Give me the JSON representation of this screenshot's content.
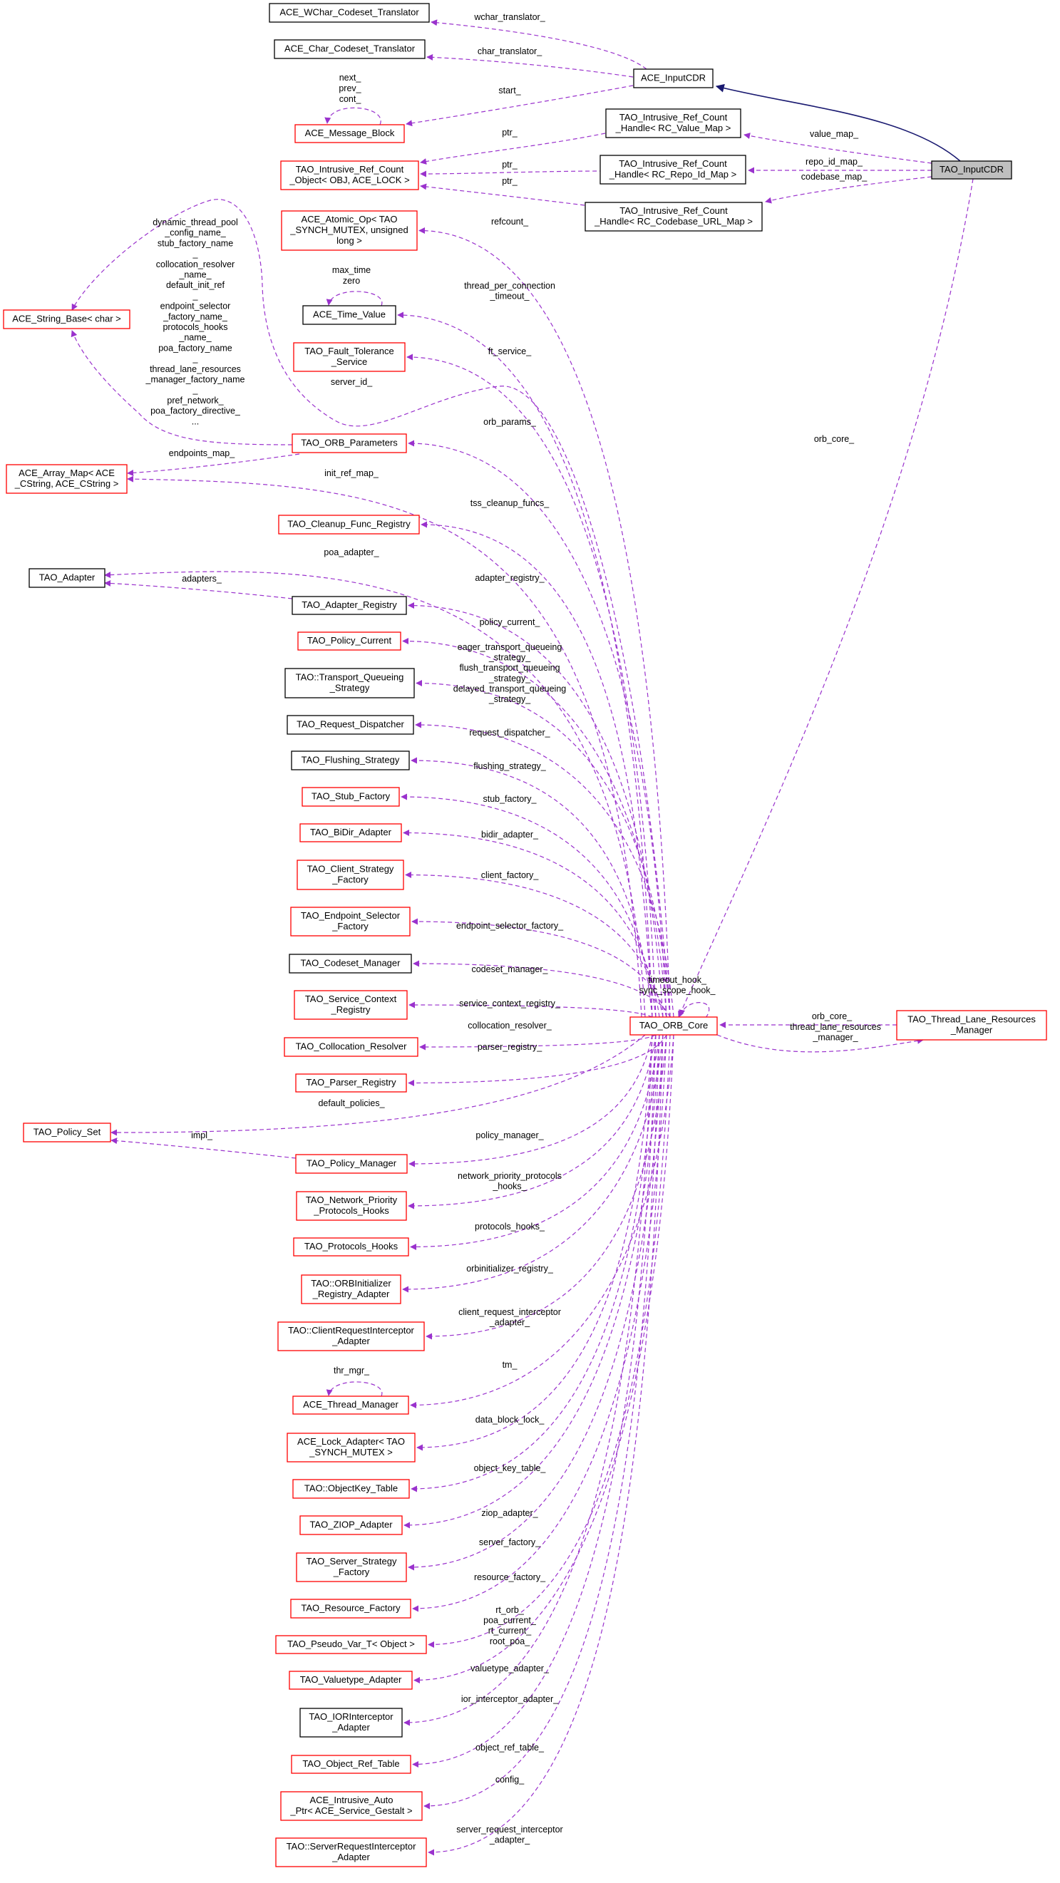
{
  "colors": {
    "member_edge": "#9a32cd",
    "inherit_edge": "#191970",
    "border_red": "#ff0000",
    "border_black": "#000000",
    "focus_fill": "#bfbfbf"
  },
  "nodes": [
    {
      "lines": [
        "TAO_InputCDR"
      ],
      "border": "black",
      "focus": true
    },
    {
      "lines": [
        "ACE_InputCDR"
      ],
      "border": "black"
    },
    {
      "lines": [
        "ACE_WChar_Codeset_Translator"
      ],
      "border": "black"
    },
    {
      "lines": [
        "ACE_Char_Codeset_Translator"
      ],
      "border": "black"
    },
    {
      "lines": [
        "ACE_Message_Block"
      ],
      "border": "red"
    },
    {
      "lines": [
        "TAO_Intrusive_Ref_Count",
        "_Handle< RC_Value_Map >"
      ],
      "border": "black"
    },
    {
      "lines": [
        "TAO_Intrusive_Ref_Count",
        "_Object< OBJ, ACE_LOCK >"
      ],
      "border": "red"
    },
    {
      "lines": [
        "TAO_Intrusive_Ref_Count",
        "_Handle< RC_Repo_Id_Map >"
      ],
      "border": "black"
    },
    {
      "lines": [
        "TAO_Intrusive_Ref_Count",
        "_Handle< RC_Codebase_URL_Map >"
      ],
      "border": "black"
    },
    {
      "lines": [
        "TAO_ORB_Core"
      ],
      "border": "red"
    },
    {
      "lines": [
        "ACE_Atomic_Op< TAO",
        "_SYNCH_MUTEX, unsigned",
        "long >"
      ],
      "border": "red"
    },
    {
      "lines": [
        "ACE_Time_Value"
      ],
      "border": "black"
    },
    {
      "lines": [
        "TAO_Fault_Tolerance",
        "_Service"
      ],
      "border": "red"
    },
    {
      "lines": [
        "ACE_String_Base< char >"
      ],
      "border": "red"
    },
    {
      "lines": [
        "TAO_ORB_Parameters"
      ],
      "border": "red"
    },
    {
      "lines": [
        "ACE_Array_Map< ACE",
        "_CString, ACE_CString >"
      ],
      "border": "red"
    },
    {
      "lines": [
        "TAO_Cleanup_Func_Registry"
      ],
      "border": "red"
    },
    {
      "lines": [
        "TAO_Adapter"
      ],
      "border": "black"
    },
    {
      "lines": [
        "TAO_Adapter_Registry"
      ],
      "border": "black"
    },
    {
      "lines": [
        "TAO_Policy_Current"
      ],
      "border": "red"
    },
    {
      "lines": [
        "TAO::Transport_Queueing",
        "_Strategy"
      ],
      "border": "black"
    },
    {
      "lines": [
        "TAO_Request_Dispatcher"
      ],
      "border": "black"
    },
    {
      "lines": [
        "TAO_Flushing_Strategy"
      ],
      "border": "black"
    },
    {
      "lines": [
        "TAO_Stub_Factory"
      ],
      "border": "red"
    },
    {
      "lines": [
        "TAO_BiDir_Adapter"
      ],
      "border": "red"
    },
    {
      "lines": [
        "TAO_Client_Strategy",
        "_Factory"
      ],
      "border": "red"
    },
    {
      "lines": [
        "TAO_Endpoint_Selector",
        "_Factory"
      ],
      "border": "red"
    },
    {
      "lines": [
        "TAO_Codeset_Manager"
      ],
      "border": "black"
    },
    {
      "lines": [
        "TAO_Service_Context",
        "_Registry"
      ],
      "border": "red"
    },
    {
      "lines": [
        "TAO_Thread_Lane_Resources",
        "_Manager"
      ],
      "border": "red"
    },
    {
      "lines": [
        "TAO_Collocation_Resolver"
      ],
      "border": "red"
    },
    {
      "lines": [
        "TAO_Parser_Registry"
      ],
      "border": "red"
    },
    {
      "lines": [
        "TAO_Policy_Set"
      ],
      "border": "red"
    },
    {
      "lines": [
        "TAO_Policy_Manager"
      ],
      "border": "red"
    },
    {
      "lines": [
        "TAO_Network_Priority",
        "_Protocols_Hooks"
      ],
      "border": "red"
    },
    {
      "lines": [
        "TAO_Protocols_Hooks"
      ],
      "border": "red"
    },
    {
      "lines": [
        "TAO::ORBInitializer",
        "_Registry_Adapter"
      ],
      "border": "red"
    },
    {
      "lines": [
        "TAO::ClientRequestInterceptor",
        "_Adapter"
      ],
      "border": "red"
    },
    {
      "lines": [
        "ACE_Thread_Manager"
      ],
      "border": "red"
    },
    {
      "lines": [
        "ACE_Lock_Adapter< TAO",
        "_SYNCH_MUTEX >"
      ],
      "border": "red"
    },
    {
      "lines": [
        "TAO::ObjectKey_Table"
      ],
      "border": "red"
    },
    {
      "lines": [
        "TAO_ZIOP_Adapter"
      ],
      "border": "red"
    },
    {
      "lines": [
        "TAO_Server_Strategy",
        "_Factory"
      ],
      "border": "red"
    },
    {
      "lines": [
        "TAO_Resource_Factory"
      ],
      "border": "red"
    },
    {
      "lines": [
        "TAO_Pseudo_Var_T< Object >"
      ],
      "border": "red"
    },
    {
      "lines": [
        "TAO_Valuetype_Adapter"
      ],
      "border": "red"
    },
    {
      "lines": [
        "TAO_IORInterceptor",
        "_Adapter"
      ],
      "border": "black"
    },
    {
      "lines": [
        "TAO_Object_Ref_Table"
      ],
      "border": "red"
    },
    {
      "lines": [
        "ACE_Intrusive_Auto",
        "_Ptr< ACE_Service_Gestalt >"
      ],
      "border": "red"
    },
    {
      "lines": [
        "TAO::ServerRequestInterceptor",
        "_Adapter"
      ],
      "border": "red"
    }
  ],
  "edges": [
    {
      "from": 1,
      "to": 2,
      "labels": [
        "wchar_translator_"
      ]
    },
    {
      "from": 1,
      "to": 3,
      "labels": [
        "char_translator_"
      ]
    },
    {
      "from": 1,
      "to": 4,
      "labels": [
        "start_"
      ]
    },
    {
      "from": 4,
      "to": 4,
      "labels": [
        "next_",
        "prev_",
        "cont_"
      ]
    },
    {
      "from": 5,
      "to": 6,
      "labels": [
        "ptr_"
      ]
    },
    {
      "from": 7,
      "to": 6,
      "labels": [
        "ptr_"
      ]
    },
    {
      "from": 8,
      "to": 6,
      "labels": [
        "ptr_"
      ]
    },
    {
      "from": 0,
      "to": 1,
      "labels": [],
      "kind": "inheritance"
    },
    {
      "from": 0,
      "to": 5,
      "labels": [
        "value_map_"
      ]
    },
    {
      "from": 0,
      "to": 7,
      "labels": [
        "repo_id_map_"
      ]
    },
    {
      "from": 0,
      "to": 8,
      "labels": [
        "codebase_map_"
      ]
    },
    {
      "from": 0,
      "to": 9,
      "labels": [
        "orb_core_"
      ]
    },
    {
      "from": 9,
      "to": 10,
      "labels": [
        "refcount_"
      ]
    },
    {
      "from": 11,
      "to": 11,
      "labels": [
        "max_time",
        "zero"
      ]
    },
    {
      "from": 9,
      "to": 11,
      "labels": [
        "thread_per_connection",
        "_timeout_"
      ]
    },
    {
      "from": 9,
      "to": 12,
      "labels": [
        "ft_service_"
      ]
    },
    {
      "from": 14,
      "to": 13,
      "labels": [
        "dynamic_thread_pool",
        "_config_name_",
        "stub_factory_name",
        "_",
        "collocation_resolver",
        "_name_",
        "default_init_ref",
        "_",
        "endpoint_selector",
        "_factory_name_",
        "protocols_hooks",
        "_name_",
        "poa_factory_name",
        "_",
        "thread_lane_resources",
        "_manager_factory_name",
        "_",
        "pref_network_",
        "poa_factory_directive_",
        "..."
      ]
    },
    {
      "from": 9,
      "to": 13,
      "labels": [
        "server_id_"
      ]
    },
    {
      "from": 9,
      "to": 14,
      "labels": [
        "orb_params_"
      ]
    },
    {
      "from": 14,
      "to": 15,
      "labels": [
        "endpoints_map_"
      ]
    },
    {
      "from": 9,
      "to": 15,
      "labels": [
        "init_ref_map_"
      ]
    },
    {
      "from": 9,
      "to": 16,
      "labels": [
        "tss_cleanup_funcs_"
      ]
    },
    {
      "from": 9,
      "to": 17,
      "labels": [
        "poa_adapter_"
      ]
    },
    {
      "from": 18,
      "to": 17,
      "labels": [
        "adapters_"
      ]
    },
    {
      "from": 9,
      "to": 18,
      "labels": [
        "adapter_registry_"
      ]
    },
    {
      "from": 9,
      "to": 19,
      "labels": [
        "policy_current_"
      ]
    },
    {
      "from": 9,
      "to": 20,
      "labels": [
        "eager_transport_queueing",
        "_strategy_",
        "flush_transport_queueing",
        "_strategy_",
        "delayed_transport_queueing",
        "_strategy_"
      ]
    },
    {
      "from": 9,
      "to": 21,
      "labels": [
        "request_dispatcher_"
      ]
    },
    {
      "from": 9,
      "to": 22,
      "labels": [
        "flushing_strategy_"
      ]
    },
    {
      "from": 9,
      "to": 23,
      "labels": [
        "stub_factory_"
      ]
    },
    {
      "from": 9,
      "to": 24,
      "labels": [
        "bidir_adapter_"
      ]
    },
    {
      "from": 9,
      "to": 25,
      "labels": [
        "client_factory_"
      ]
    },
    {
      "from": 9,
      "to": 26,
      "labels": [
        "endpoint_selector_factory_"
      ]
    },
    {
      "from": 9,
      "to": 27,
      "labels": [
        "codeset_manager_"
      ]
    },
    {
      "from": 9,
      "to": 9,
      "labels": [
        "timeout_hook_",
        "sync_scope_hook_"
      ]
    },
    {
      "from": 9,
      "to": 28,
      "labels": [
        "service_context_registry_"
      ]
    },
    {
      "from": 9,
      "to": 30,
      "labels": [
        "collocation_resolver_"
      ]
    },
    {
      "from": 29,
      "to": 9,
      "labels": [
        "orb_core_"
      ]
    },
    {
      "from": 9,
      "to": 29,
      "labels": [
        "thread_lane_resources",
        "_manager_"
      ]
    },
    {
      "from": 9,
      "to": 31,
      "labels": [
        "parser_registry_"
      ]
    },
    {
      "from": 9,
      "to": 32,
      "labels": [
        "default_policies_"
      ]
    },
    {
      "from": 33,
      "to": 32,
      "labels": [
        "impl_"
      ]
    },
    {
      "from": 9,
      "to": 33,
      "labels": [
        "policy_manager_"
      ]
    },
    {
      "from": 9,
      "to": 34,
      "labels": [
        "network_priority_protocols",
        "_hooks_"
      ]
    },
    {
      "from": 9,
      "to": 35,
      "labels": [
        "protocols_hooks_"
      ]
    },
    {
      "from": 9,
      "to": 36,
      "labels": [
        "orbinitializer_registry_"
      ]
    },
    {
      "from": 9,
      "to": 37,
      "labels": [
        "client_request_interceptor",
        "_adapter_"
      ]
    },
    {
      "from": 38,
      "to": 38,
      "labels": [
        "thr_mgr_"
      ]
    },
    {
      "from": 9,
      "to": 38,
      "labels": [
        "tm_"
      ]
    },
    {
      "from": 9,
      "to": 39,
      "labels": [
        "data_block_lock_"
      ]
    },
    {
      "from": 9,
      "to": 40,
      "labels": [
        "object_key_table_"
      ]
    },
    {
      "from": 9,
      "to": 41,
      "labels": [
        "ziop_adapter_"
      ]
    },
    {
      "from": 9,
      "to": 42,
      "labels": [
        "server_factory_"
      ]
    },
    {
      "from": 9,
      "to": 43,
      "labels": [
        "resource_factory_"
      ]
    },
    {
      "from": 9,
      "to": 44,
      "labels": [
        "rt_orb_",
        "poa_current_",
        "rt_current_",
        "root_poa_"
      ]
    },
    {
      "from": 9,
      "to": 45,
      "labels": [
        "valuetype_adapter_"
      ]
    },
    {
      "from": 9,
      "to": 46,
      "labels": [
        "ior_interceptor_adapter_"
      ]
    },
    {
      "from": 9,
      "to": 47,
      "labels": [
        "object_ref_table_"
      ]
    },
    {
      "from": 9,
      "to": 48,
      "labels": [
        "config_"
      ]
    },
    {
      "from": 9,
      "to": 49,
      "labels": [
        "server_request_interceptor",
        "_adapter_"
      ]
    }
  ]
}
